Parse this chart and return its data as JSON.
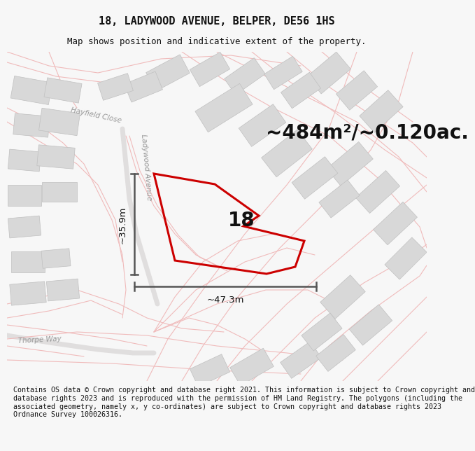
{
  "title": "18, LADYWOOD AVENUE, BELPER, DE56 1HS",
  "subtitle": "Map shows position and indicative extent of the property.",
  "area_label": "~484m²/~0.120ac.",
  "plot_number": "18",
  "dim_width": "~47.3m",
  "dim_height": "~35.9m",
  "footer": "Contains OS data © Crown copyright and database right 2021. This information is subject to Crown copyright and database rights 2023 and is reproduced with the permission of HM Land Registry. The polygons (including the associated geometry, namely x, y co-ordinates) are subject to Crown copyright and database rights 2023 Ordnance Survey 100026316.",
  "bg_color": "#f7f7f7",
  "map_bg": "#efefef",
  "road_color_light": "#f0bbbb",
  "building_color": "#d8d8d8",
  "building_edge": "#c0c0c0",
  "plot_color": "#cc0000",
  "dim_color": "#555555",
  "text_color": "#111111",
  "road_label_color": "#999999",
  "title_fontsize": 11,
  "subtitle_fontsize": 9,
  "area_fontsize": 20,
  "plot_num_fontsize": 20,
  "dim_fontsize": 9.5,
  "footer_fontsize": 7.2,
  "road_label_fontsize": 7.5
}
